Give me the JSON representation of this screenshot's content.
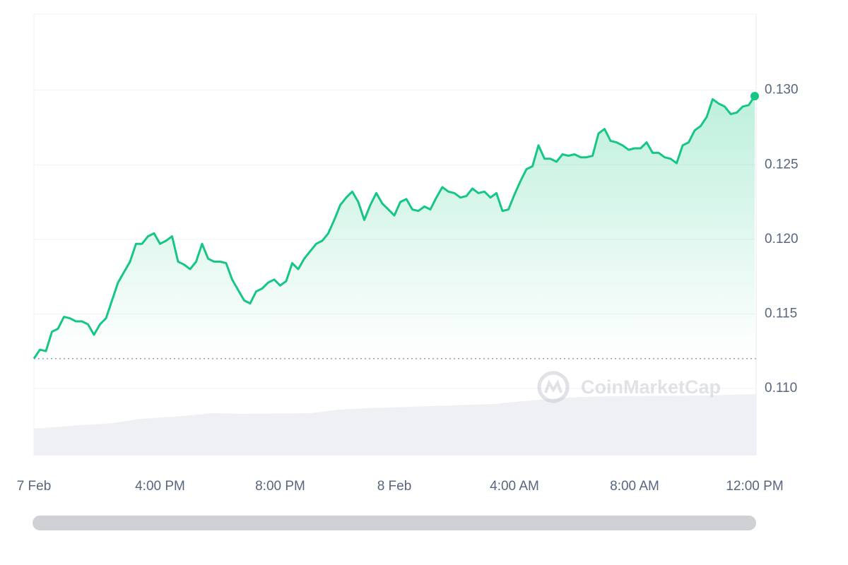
{
  "chart_data": {
    "type": "line",
    "watermark": "CoinMarketCap",
    "color": "#16c784",
    "values": [
      0.112,
      0.1126,
      0.1125,
      0.1138,
      0.114,
      0.1148,
      0.1147,
      0.1145,
      0.1145,
      0.1143,
      0.1136,
      0.1143,
      0.1147,
      0.1159,
      0.1171,
      0.1178,
      0.1185,
      0.1197,
      0.1197,
      0.1202,
      0.1204,
      0.1197,
      0.1199,
      0.1202,
      0.1185,
      0.1183,
      0.118,
      0.1185,
      0.1197,
      0.1187,
      0.1185,
      0.1185,
      0.1184,
      0.1173,
      0.1166,
      0.1159,
      0.1157,
      0.1165,
      0.1167,
      0.1171,
      0.1173,
      0.1169,
      0.1172,
      0.1184,
      0.118,
      0.1187,
      0.1192,
      0.1197,
      0.1199,
      0.1204,
      0.1213,
      0.1223,
      0.1228,
      0.1232,
      0.1225,
      0.1213,
      0.1223,
      0.1231,
      0.1224,
      0.122,
      0.1216,
      0.1225,
      0.1227,
      0.122,
      0.1219,
      0.1222,
      0.122,
      0.1228,
      0.1235,
      0.1232,
      0.1231,
      0.1228,
      0.1229,
      0.1234,
      0.1231,
      0.1232,
      0.1228,
      0.1231,
      0.1219,
      0.122,
      0.123,
      0.1239,
      0.1247,
      0.1249,
      0.1263,
      0.1254,
      0.1254,
      0.1252,
      0.1257,
      0.1256,
      0.1257,
      0.1255,
      0.1255,
      0.1256,
      0.1271,
      0.1274,
      0.1266,
      0.1265,
      0.1263,
      0.126,
      0.1261,
      0.1261,
      0.1265,
      0.1258,
      0.1258,
      0.1255,
      0.1254,
      0.1251,
      0.1263,
      0.1265,
      0.1273,
      0.1276,
      0.1282,
      0.1294,
      0.1291,
      0.1289,
      0.1284,
      0.1285,
      0.1289,
      0.129,
      0.1296
    ],
    "baseline": 0.112,
    "xlim": [
      0,
      120
    ],
    "xticks": [
      {
        "value": 0,
        "label": "7 Feb"
      },
      {
        "value": 21,
        "label": "4:00 PM"
      },
      {
        "value": 41,
        "label": "8:00 PM"
      },
      {
        "value": 60,
        "label": "8 Feb"
      },
      {
        "value": 80,
        "label": "4:00 AM"
      },
      {
        "value": 100,
        "label": "8:00 AM"
      },
      {
        "value": 120,
        "label": "12:00 PM"
      }
    ],
    "ylim": [
      0.1055,
      0.1351
    ],
    "yticks": [
      {
        "value": 0.11,
        "label": "0.110"
      },
      {
        "value": 0.115,
        "label": "0.115"
      },
      {
        "value": 0.12,
        "label": "0.120"
      },
      {
        "value": 0.125,
        "label": "0.125"
      },
      {
        "value": 0.13,
        "label": "0.130"
      }
    ],
    "grid": true
  }
}
